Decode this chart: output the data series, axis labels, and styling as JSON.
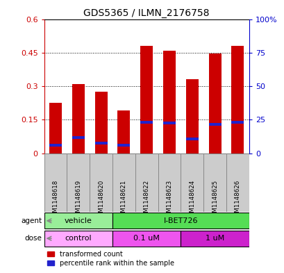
{
  "title": "GDS5365 / ILMN_2176758",
  "samples": [
    "GSM1148618",
    "GSM1148619",
    "GSM1148620",
    "GSM1148621",
    "GSM1148622",
    "GSM1148623",
    "GSM1148624",
    "GSM1148625",
    "GSM1148626"
  ],
  "red_values": [
    0.225,
    0.31,
    0.275,
    0.19,
    0.48,
    0.46,
    0.33,
    0.445,
    0.48
  ],
  "blue_values": [
    0.035,
    0.07,
    0.045,
    0.035,
    0.14,
    0.135,
    0.065,
    0.13,
    0.14
  ],
  "blue_thickness": 0.012,
  "ylim_left": [
    0,
    0.6
  ],
  "ylim_right": [
    0,
    100
  ],
  "yticks_left": [
    0,
    0.15,
    0.3,
    0.45,
    0.6
  ],
  "yticks_right": [
    0,
    25,
    50,
    75,
    100
  ],
  "bar_color": "#cc0000",
  "blue_color": "#2222cc",
  "agent_labels": [
    "vehicle",
    "I-BET726"
  ],
  "agent_colors": [
    "#99ee99",
    "#55dd55"
  ],
  "dose_labels": [
    "control",
    "0.1 uM",
    "1 uM"
  ],
  "dose_colors": [
    "#ffaaff",
    "#ee55ee",
    "#cc22cc"
  ],
  "bar_width": 0.55,
  "background_color": "#ffffff",
  "plot_bg_color": "#ffffff",
  "grid_color": "#000000",
  "label_color_left": "#cc0000",
  "label_color_right": "#0000cc",
  "label_box_color": "#cccccc",
  "label_box_edge": "#888888"
}
